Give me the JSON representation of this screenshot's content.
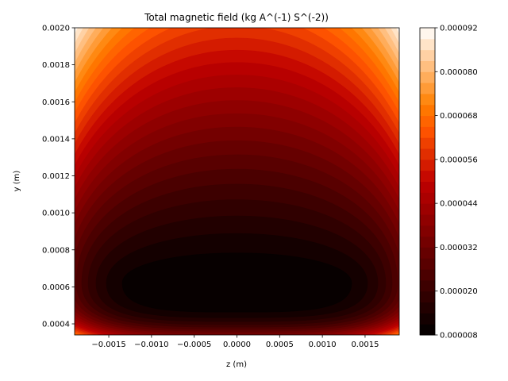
{
  "chart_data": {
    "type": "heatmap",
    "subtype": "filled-contour",
    "title": "Total magnetic field (kg A^(-1) S^(-2))",
    "xlabel": "z (m)",
    "ylabel": "y (m)",
    "xlim": [
      -0.0019,
      0.0019
    ],
    "ylim": [
      0.00034,
      0.002
    ],
    "x_ticks": [
      -0.0015,
      -0.001,
      -0.0005,
      0.0,
      0.0005,
      0.001,
      0.0015
    ],
    "x_tick_labels": [
      "−0.0015",
      "−0.0010",
      "−0.0005",
      "0.0000",
      "0.0005",
      "0.0010",
      "0.0015"
    ],
    "y_ticks": [
      0.0004,
      0.0006,
      0.0008,
      0.001,
      0.0012,
      0.0014,
      0.0016,
      0.0018,
      0.002
    ],
    "y_tick_labels": [
      "0.0004",
      "0.0006",
      "0.0008",
      "0.0010",
      "0.0012",
      "0.0014",
      "0.0016",
      "0.0018",
      "0.0020"
    ],
    "field_minimum": {
      "z": 0.0,
      "y": 0.00062,
      "value": 8e-06
    },
    "colormap": "gist_heat",
    "colorbar": {
      "min": 8e-06,
      "max": 9.2e-05,
      "levels": 28,
      "ticks": [
        8e-06,
        2e-05,
        3.2e-05,
        4.4e-05,
        5.6e-05,
        6.8e-05,
        8e-05,
        9.2e-05
      ],
      "tick_labels": [
        "0.000008",
        "0.000020",
        "0.000032",
        "0.000044",
        "0.000056",
        "0.000068",
        "0.000080",
        "0.000092"
      ]
    }
  }
}
